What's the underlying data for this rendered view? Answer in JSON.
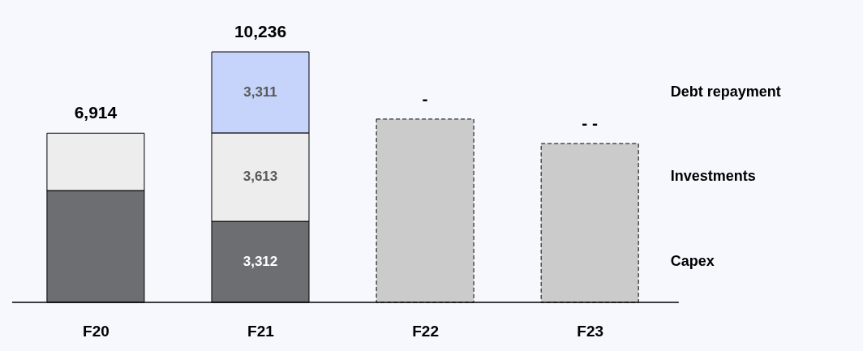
{
  "chart_data": {
    "type": "bar",
    "stacked": true,
    "categories": [
      "F20",
      "F21",
      "F22",
      "F23"
    ],
    "series": [
      {
        "name": "Capex",
        "color": "#6d6e71",
        "values": [
          4570,
          3312,
          null,
          null
        ],
        "value_labels": [
          null,
          "3,312",
          null,
          null
        ]
      },
      {
        "name": "Investments",
        "color": "#ededed",
        "values": [
          2344,
          3613,
          null,
          null
        ],
        "value_labels": [
          null,
          "3,613",
          null,
          null
        ]
      },
      {
        "name": "Debt repayment",
        "color": "#c6d4fb",
        "values": [
          null,
          3311,
          null,
          null
        ],
        "value_labels": [
          null,
          "3,311",
          null,
          null
        ]
      },
      {
        "color": "#cbcbcb",
        "line_style": "dashed",
        "values": [
          null,
          null,
          7490,
          6490
        ]
      }
    ],
    "totals": [
      "6,914",
      "10,236",
      "-",
      "- -"
    ]
  }
}
